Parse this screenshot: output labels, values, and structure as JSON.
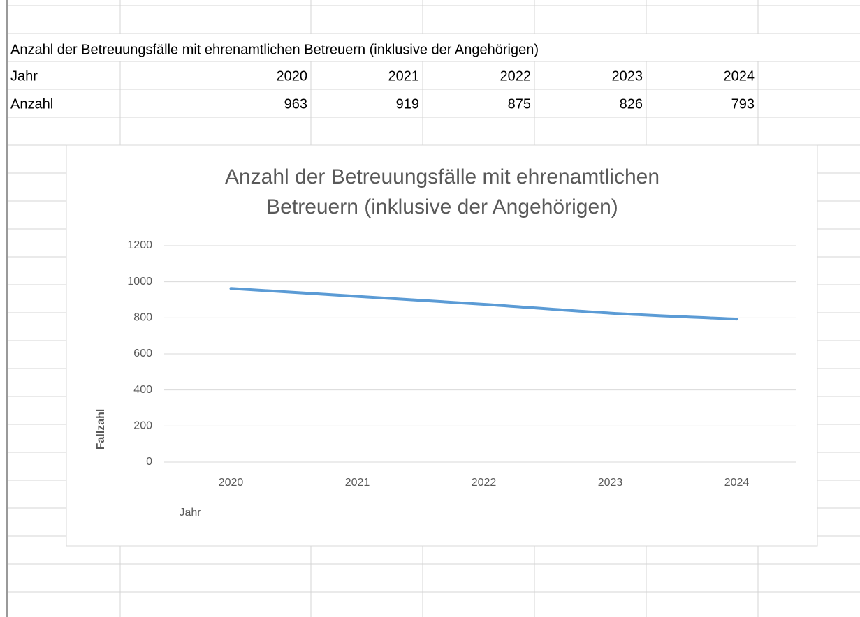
{
  "table": {
    "title": "Anzahl der Betreuungsfälle mit ehrenamtlichen Betreuern (inklusive der Angehörigen)",
    "rows": [
      [
        "Jahr",
        2020,
        2021,
        2022,
        2023,
        2024
      ],
      [
        "Anzahl",
        963,
        919,
        875,
        826,
        793
      ]
    ]
  },
  "chart_data": {
    "type": "line",
    "title": "Anzahl der Betreuungsfälle mit ehrenamtlichen Betreuern (inklusive der Angehörigen)",
    "title_lines": [
      "Anzahl der Betreuungsfälle mit ehrenamtlichen",
      "Betreuern (inklusive der Angehörigen)"
    ],
    "xlabel": "Jahr",
    "ylabel": "Fallzahl",
    "categories": [
      "2020",
      "2021",
      "2022",
      "2023",
      "2024"
    ],
    "values": [
      963,
      919,
      875,
      826,
      793
    ],
    "color": "#5b9bd5",
    "smooth": true,
    "ylim": [
      0,
      1200
    ],
    "yticks": [
      0,
      200,
      400,
      600,
      800,
      1000,
      1200
    ],
    "grid": true
  }
}
